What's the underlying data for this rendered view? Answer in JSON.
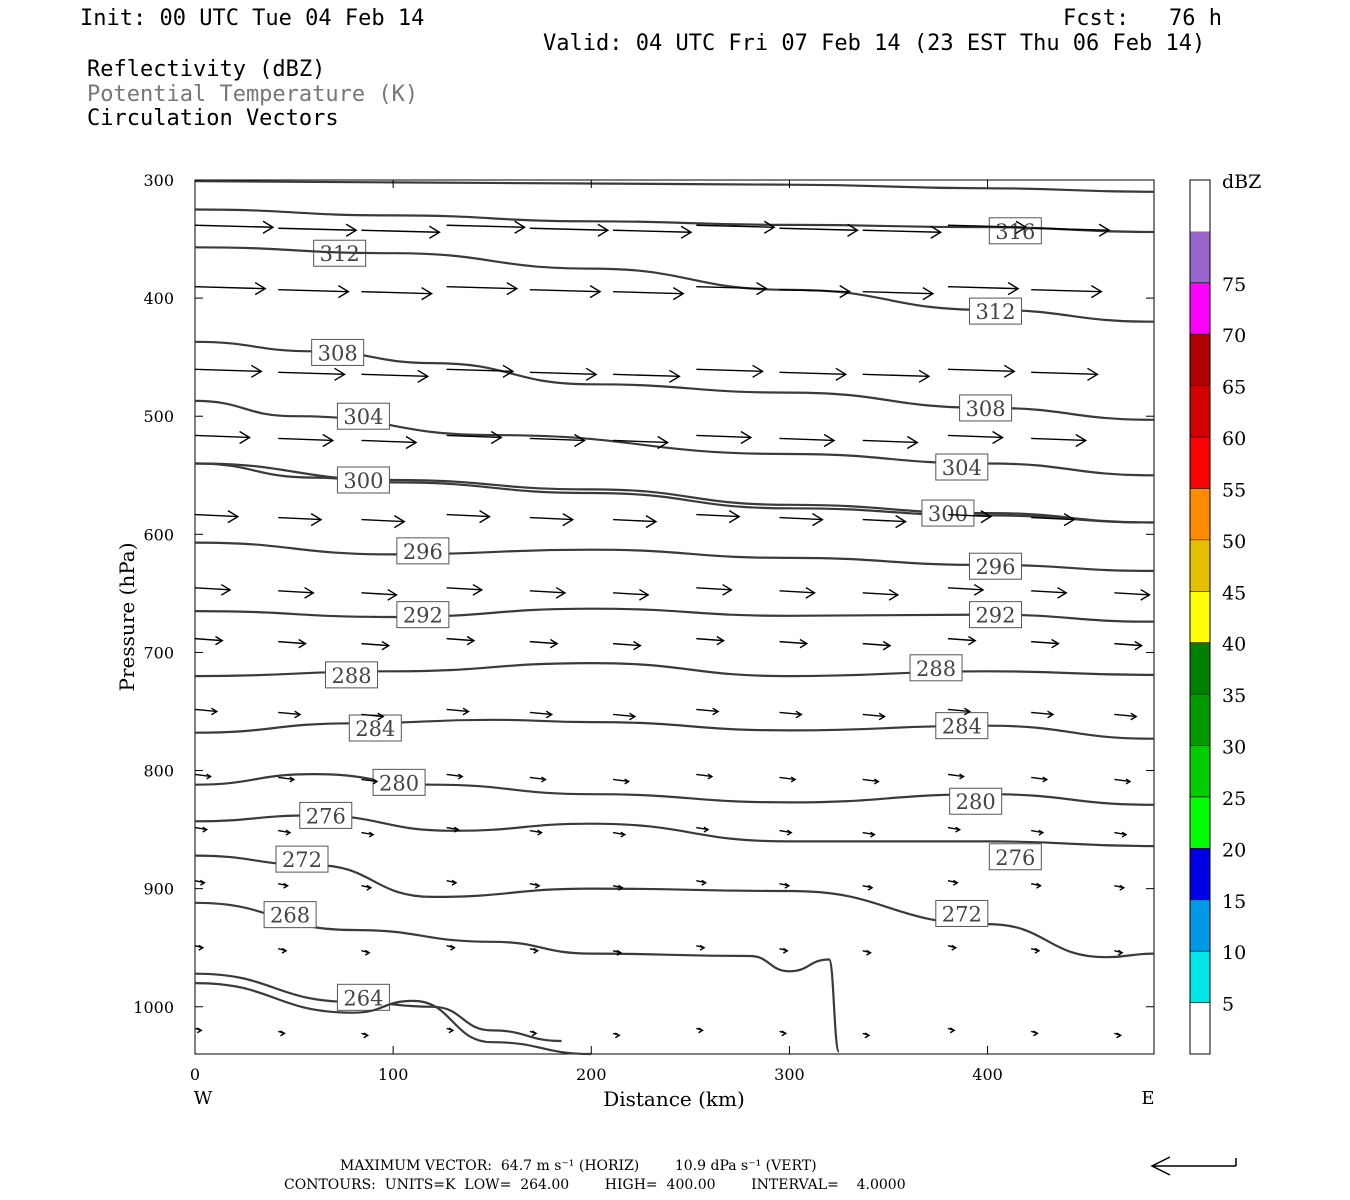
{
  "header": {
    "init": "Init: 00 UTC Tue 04 Feb 14",
    "fcst": "Fcst:   76 h",
    "valid": "Valid: 04 UTC Fri 07 Feb 14 (23 EST Thu 06 Feb 14)",
    "fields": [
      "Reflectivity (dBZ)",
      "Potential Temperature (K)",
      "Circulation Vectors"
    ]
  },
  "colors": {
    "contour": "#3a3a3a",
    "vector": "#000000",
    "field_secondary": "#777777"
  },
  "chart_data": {
    "type": "line",
    "xlabel": "Distance (km)",
    "ylabel": "Pressure (hPa)",
    "xlim": [
      0,
      484
    ],
    "ylim": [
      1040,
      300
    ],
    "xticks": [
      0,
      100,
      200,
      300,
      400
    ],
    "yticks": [
      300,
      400,
      500,
      600,
      700,
      800,
      900,
      1000
    ],
    "x_end_labels": {
      "left": "W",
      "right": "E"
    },
    "contour_field": "Potential Temperature (K)",
    "contours": [
      {
        "value": 316,
        "points": [
          [
            0,
            301
          ],
          [
            100,
            302
          ],
          [
            200,
            303
          ],
          [
            300,
            304
          ],
          [
            400,
            307
          ],
          [
            484,
            310
          ]
        ],
        "labels": [
          [
            414,
            343
          ]
        ]
      },
      {
        "value": 312,
        "points": [
          [
            0,
            325
          ],
          [
            100,
            330
          ],
          [
            200,
            335
          ],
          [
            300,
            338
          ],
          [
            400,
            340
          ],
          [
            484,
            344
          ]
        ],
        "labels": [
          [
            73,
            362
          ]
        ]
      },
      {
        "value": 312,
        "points": [
          [
            0,
            357
          ],
          [
            100,
            362
          ],
          [
            200,
            375
          ],
          [
            300,
            393
          ],
          [
            400,
            410
          ],
          [
            484,
            420
          ]
        ],
        "labels": [
          [
            404,
            411
          ]
        ]
      },
      {
        "value": 308,
        "points": [
          [
            0,
            437
          ],
          [
            60,
            445
          ],
          [
            120,
            455
          ],
          [
            200,
            473
          ],
          [
            300,
            480
          ],
          [
            400,
            493
          ],
          [
            484,
            503
          ]
        ],
        "labels": [
          [
            72,
            446
          ],
          [
            399,
            493
          ]
        ]
      },
      {
        "value": 304,
        "points": [
          [
            0,
            487
          ],
          [
            50,
            500
          ],
          [
            150,
            516
          ],
          [
            300,
            532
          ],
          [
            400,
            540
          ],
          [
            484,
            550
          ]
        ],
        "labels": [
          [
            85,
            500
          ]
        ]
      },
      {
        "value": 304,
        "points": [
          [
            0,
            540
          ],
          [
            100,
            554
          ],
          [
            200,
            562
          ],
          [
            300,
            575
          ],
          [
            400,
            582
          ],
          [
            484,
            590
          ]
        ],
        "labels": [
          [
            387,
            543
          ]
        ]
      },
      {
        "value": 300,
        "points": [
          [
            0,
            540
          ],
          [
            60,
            552
          ],
          [
            100,
            556
          ],
          [
            200,
            565
          ],
          [
            300,
            578
          ],
          [
            400,
            584
          ],
          [
            484,
            590
          ]
        ],
        "labels": [
          [
            85,
            554
          ],
          [
            380,
            582
          ]
        ]
      },
      {
        "value": 296,
        "points": [
          [
            0,
            607
          ],
          [
            100,
            617
          ],
          [
            200,
            613
          ],
          [
            300,
            620
          ],
          [
            400,
            626
          ],
          [
            484,
            631
          ]
        ],
        "labels": [
          [
            115,
            614
          ],
          [
            404,
            627
          ]
        ]
      },
      {
        "value": 292,
        "points": [
          [
            0,
            665
          ],
          [
            100,
            670
          ],
          [
            200,
            663
          ],
          [
            300,
            669
          ],
          [
            400,
            668
          ],
          [
            484,
            674
          ]
        ],
        "labels": [
          [
            115,
            668
          ],
          [
            404,
            668
          ]
        ]
      },
      {
        "value": 288,
        "points": [
          [
            0,
            720
          ],
          [
            100,
            716
          ],
          [
            200,
            709
          ],
          [
            300,
            720
          ],
          [
            400,
            716
          ],
          [
            484,
            719
          ]
        ],
        "labels": [
          [
            79,
            719
          ],
          [
            374,
            713
          ]
        ]
      },
      {
        "value": 284,
        "points": [
          [
            0,
            768
          ],
          [
            80,
            760
          ],
          [
            150,
            757
          ],
          [
            200,
            759
          ],
          [
            300,
            766
          ],
          [
            400,
            762
          ],
          [
            484,
            773
          ]
        ],
        "labels": [
          [
            91,
            764
          ],
          [
            387,
            762
          ]
        ]
      },
      {
        "value": 280,
        "points": [
          [
            0,
            812
          ],
          [
            60,
            803
          ],
          [
            120,
            812
          ],
          [
            200,
            820
          ],
          [
            300,
            827
          ],
          [
            400,
            820
          ],
          [
            484,
            829
          ]
        ],
        "labels": [
          [
            103,
            810
          ],
          [
            394,
            826
          ]
        ]
      },
      {
        "value": 276,
        "points": [
          [
            0,
            843
          ],
          [
            60,
            838
          ],
          [
            130,
            851
          ],
          [
            200,
            845
          ],
          [
            300,
            860
          ],
          [
            400,
            860
          ],
          [
            484,
            864
          ]
        ],
        "labels": [
          [
            66,
            838
          ],
          [
            414,
            873
          ]
        ]
      },
      {
        "value": 272,
        "points": [
          [
            0,
            872
          ],
          [
            60,
            880
          ],
          [
            120,
            907
          ],
          [
            200,
            900
          ],
          [
            300,
            902
          ],
          [
            400,
            930
          ],
          [
            460,
            958
          ],
          [
            484,
            955
          ]
        ],
        "labels": [
          [
            54,
            875
          ],
          [
            387,
            921
          ]
        ]
      },
      {
        "value": 268,
        "points": [
          [
            0,
            912
          ],
          [
            80,
            935
          ],
          [
            150,
            945
          ],
          [
            200,
            955
          ],
          [
            280,
            957
          ],
          [
            300,
            970
          ],
          [
            320,
            960
          ],
          [
            325,
            1038
          ]
        ],
        "labels": [
          [
            48,
            922
          ]
        ]
      },
      {
        "value": 264,
        "points": [
          [
            0,
            972
          ],
          [
            80,
            996
          ],
          [
            120,
            1000
          ],
          [
            150,
            1020
          ],
          [
            185,
            1029
          ]
        ],
        "labels": [
          [
            85,
            992
          ]
        ]
      },
      {
        "value": 264,
        "points": [
          [
            0,
            980
          ],
          [
            80,
            1005
          ],
          [
            110,
            995
          ],
          [
            150,
            1030
          ],
          [
            200,
            1040
          ]
        ],
        "labels": []
      }
    ],
    "vector_field": "Circulation Vectors",
    "vectors": {
      "rows": [
        {
          "p": 340,
          "speed": 1.0
        },
        {
          "p": 392,
          "speed": 0.9
        },
        {
          "p": 462,
          "speed": 0.85
        },
        {
          "p": 518,
          "speed": 0.7
        },
        {
          "p": 585,
          "speed": 0.55
        },
        {
          "p": 647,
          "speed": 0.45
        },
        {
          "p": 690,
          "speed": 0.35
        },
        {
          "p": 750,
          "speed": 0.28
        },
        {
          "p": 805,
          "speed": 0.2
        },
        {
          "p": 850,
          "speed": 0.15
        },
        {
          "p": 895,
          "speed": 0.12
        },
        {
          "p": 950,
          "speed": 0.1
        },
        {
          "p": 1020,
          "speed": 0.08
        }
      ],
      "x": [
        0,
        42,
        84,
        127,
        169,
        211,
        253,
        295,
        337,
        380,
        422,
        464
      ]
    },
    "colorbar": {
      "title": "dBZ",
      "levels": [
        5,
        10,
        15,
        20,
        25,
        30,
        35,
        40,
        45,
        50,
        55,
        60,
        65,
        70,
        75
      ],
      "colors": [
        "#ffffff",
        "#00e5e5",
        "#0099e5",
        "#0000e5",
        "#00ff00",
        "#00cc00",
        "#009900",
        "#008000",
        "#ffff00",
        "#e5bf00",
        "#ff8c00",
        "#ff0000",
        "#d40000",
        "#b00000",
        "#ff00ff",
        "#9966cc",
        "#ffffff"
      ]
    }
  },
  "footer": {
    "max_vector": "MAXIMUM VECTOR:  64.7 m s⁻¹ (HORIZ)        10.9 dPa s⁻¹ (VERT)",
    "contours": "CONTOURS:  UNITS=K  LOW=  264.00        HIGH=  400.00        INTERVAL=    4.0000"
  }
}
